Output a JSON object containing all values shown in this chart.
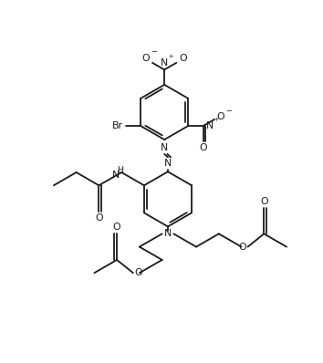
{
  "figsize": [
    3.54,
    3.98
  ],
  "dpi": 100,
  "bg_color": "#ffffff",
  "line_color": "#1a1a1a",
  "line_width": 1.3,
  "font_size": 7.8,
  "xlim": [
    -0.5,
    10.5
  ],
  "ylim": [
    0,
    11.8
  ]
}
